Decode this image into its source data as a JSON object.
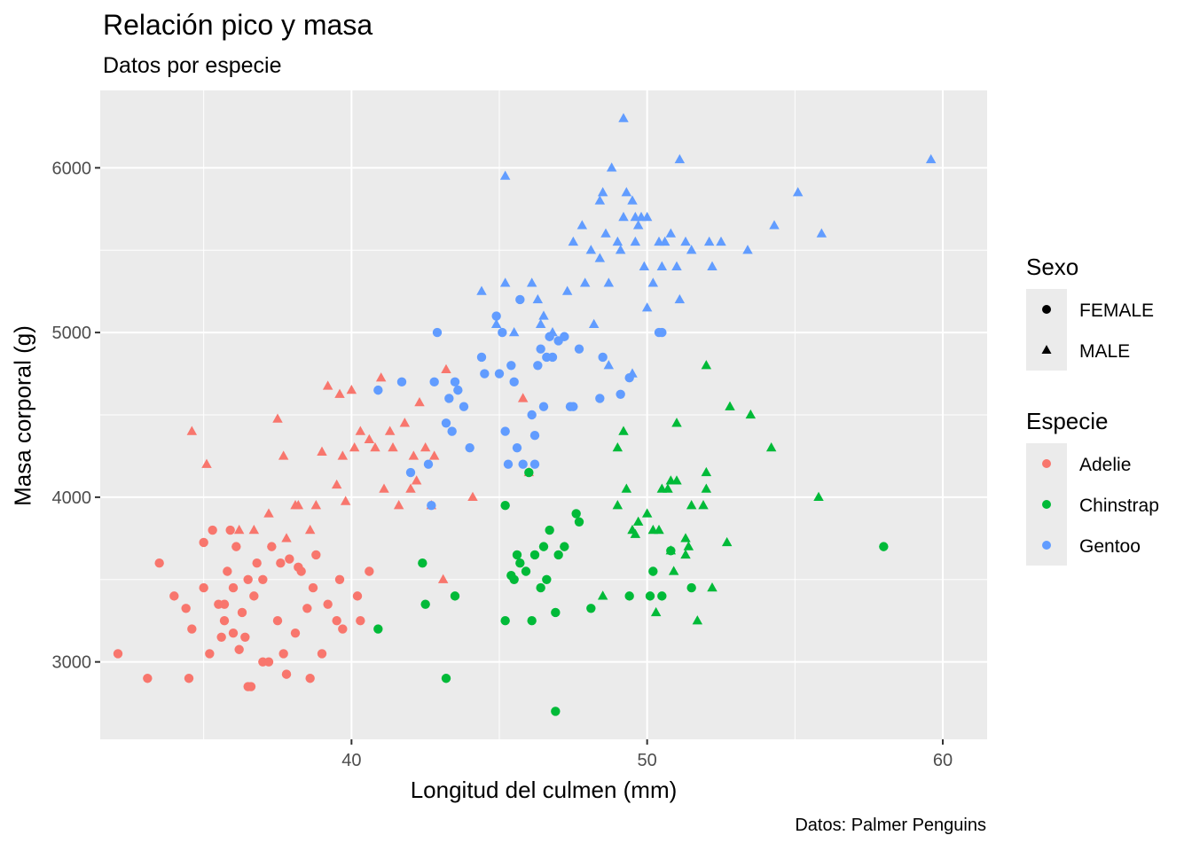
{
  "chart_data": {
    "type": "scatter",
    "title": "Relación pico y masa",
    "subtitle": "Datos por especie",
    "caption": "Datos: Palmer Penguins",
    "xlabel": "Longitud del culmen (mm)",
    "ylabel": "Masa corporal (g)",
    "xlim": [
      31.5,
      61.5
    ],
    "ylim": [
      2530,
      6470
    ],
    "x_ticks": [
      40,
      50,
      60
    ],
    "y_ticks": [
      3000,
      4000,
      5000,
      6000
    ],
    "grid": true,
    "legend_position": "right",
    "legends": [
      {
        "title": "Sexo",
        "kind": "shape",
        "entries": [
          {
            "label": "FEMALE",
            "shape": "circle"
          },
          {
            "label": "MALE",
            "shape": "triangle"
          }
        ]
      },
      {
        "title": "Especie",
        "kind": "color",
        "entries": [
          {
            "label": "Adelie",
            "color": "#F8766D"
          },
          {
            "label": "Chinstrap",
            "color": "#00BA38"
          },
          {
            "label": "Gentoo",
            "color": "#619CFF"
          }
        ]
      }
    ],
    "series": [
      {
        "species": "Adelie",
        "sex": "FEMALE",
        "color": "#F8766D",
        "shape": "circle",
        "points": [
          [
            32.1,
            3050
          ],
          [
            33.1,
            2900
          ],
          [
            33.5,
            3600
          ],
          [
            34.0,
            3400
          ],
          [
            34.4,
            3325
          ],
          [
            34.5,
            2900
          ],
          [
            34.6,
            3200
          ],
          [
            35.0,
            3450
          ],
          [
            35.0,
            3725
          ],
          [
            35.2,
            3050
          ],
          [
            35.3,
            3800
          ],
          [
            35.5,
            3350
          ],
          [
            35.6,
            3150
          ],
          [
            35.7,
            3350
          ],
          [
            35.8,
            3550
          ],
          [
            35.9,
            3800
          ],
          [
            36.0,
            3175
          ],
          [
            36.0,
            3450
          ],
          [
            36.1,
            3700
          ],
          [
            36.2,
            3075
          ],
          [
            36.3,
            3300
          ],
          [
            36.4,
            3150
          ],
          [
            36.5,
            2850
          ],
          [
            36.6,
            2850
          ],
          [
            36.7,
            3400
          ],
          [
            36.8,
            3600
          ],
          [
            37.0,
            3500
          ],
          [
            37.0,
            3000
          ],
          [
            37.2,
            3000
          ],
          [
            37.3,
            3700
          ],
          [
            37.5,
            3250
          ],
          [
            37.6,
            3600
          ],
          [
            37.7,
            3050
          ],
          [
            37.8,
            2925
          ],
          [
            37.9,
            3625
          ],
          [
            38.1,
            3175
          ],
          [
            38.2,
            3575
          ],
          [
            38.3,
            3550
          ],
          [
            38.5,
            3325
          ],
          [
            38.6,
            2900
          ],
          [
            38.7,
            3450
          ],
          [
            38.8,
            3650
          ],
          [
            39.0,
            3050
          ],
          [
            39.2,
            3350
          ],
          [
            39.5,
            3250
          ],
          [
            39.6,
            3500
          ],
          [
            39.7,
            3200
          ],
          [
            40.2,
            3400
          ],
          [
            40.3,
            3250
          ],
          [
            40.6,
            3550
          ],
          [
            36.5,
            3500
          ],
          [
            35.7,
            3250
          ]
        ]
      },
      {
        "species": "Adelie",
        "sex": "MALE",
        "color": "#F8766D",
        "shape": "triangle",
        "points": [
          [
            34.6,
            4400
          ],
          [
            35.1,
            4200
          ],
          [
            36.2,
            3800
          ],
          [
            36.7,
            3800
          ],
          [
            37.2,
            3900
          ],
          [
            37.5,
            4475
          ],
          [
            37.7,
            4250
          ],
          [
            37.8,
            3750
          ],
          [
            38.1,
            3950
          ],
          [
            38.2,
            3950
          ],
          [
            38.6,
            3800
          ],
          [
            38.8,
            3950
          ],
          [
            39.0,
            4275
          ],
          [
            39.2,
            4675
          ],
          [
            39.5,
            4075
          ],
          [
            39.6,
            4625
          ],
          [
            39.7,
            4250
          ],
          [
            39.8,
            3975
          ],
          [
            40.0,
            4650
          ],
          [
            40.1,
            4300
          ],
          [
            40.3,
            4400
          ],
          [
            40.6,
            4350
          ],
          [
            40.8,
            4300
          ],
          [
            41.1,
            4050
          ],
          [
            41.0,
            4725
          ],
          [
            41.3,
            4400
          ],
          [
            41.4,
            4300
          ],
          [
            41.6,
            3950
          ],
          [
            41.8,
            4450
          ],
          [
            42.0,
            4050
          ],
          [
            42.1,
            4250
          ],
          [
            42.2,
            4100
          ],
          [
            42.3,
            4575
          ],
          [
            42.5,
            4300
          ],
          [
            42.7,
            3950
          ],
          [
            42.8,
            4250
          ],
          [
            43.1,
            3500
          ],
          [
            43.2,
            4775
          ],
          [
            44.1,
            4000
          ],
          [
            45.8,
            4600
          ],
          [
            46.0,
            4150
          ]
        ]
      },
      {
        "species": "Chinstrap",
        "sex": "FEMALE",
        "color": "#00BA38",
        "shape": "circle",
        "points": [
          [
            40.9,
            3200
          ],
          [
            42.4,
            3600
          ],
          [
            42.5,
            3350
          ],
          [
            43.2,
            2900
          ],
          [
            43.5,
            3400
          ],
          [
            45.2,
            3250
          ],
          [
            45.2,
            3950
          ],
          [
            45.4,
            3525
          ],
          [
            45.5,
            3500
          ],
          [
            45.6,
            3650
          ],
          [
            45.7,
            3600
          ],
          [
            45.9,
            3550
          ],
          [
            46.1,
            3250
          ],
          [
            46.2,
            3650
          ],
          [
            46.4,
            3450
          ],
          [
            46.5,
            3700
          ],
          [
            46.6,
            3500
          ],
          [
            46.7,
            3800
          ],
          [
            46.9,
            2700
          ],
          [
            47.0,
            3650
          ],
          [
            46.9,
            3300
          ],
          [
            47.2,
            3700
          ],
          [
            47.6,
            3900
          ],
          [
            47.7,
            3850
          ],
          [
            48.1,
            3325
          ],
          [
            49.4,
            3400
          ],
          [
            50.1,
            3400
          ],
          [
            50.2,
            3550
          ],
          [
            50.5,
            3400
          ],
          [
            50.8,
            3675
          ],
          [
            51.5,
            3450
          ],
          [
            58.0,
            3700
          ],
          [
            46.0,
            4150
          ]
        ]
      },
      {
        "species": "Chinstrap",
        "sex": "MALE",
        "color": "#00BA38",
        "shape": "triangle",
        "points": [
          [
            48.5,
            3400
          ],
          [
            49.0,
            3950
          ],
          [
            49.0,
            4300
          ],
          [
            49.2,
            4400
          ],
          [
            49.3,
            4050
          ],
          [
            49.5,
            3800
          ],
          [
            49.6,
            3775
          ],
          [
            49.7,
            3850
          ],
          [
            50.0,
            3900
          ],
          [
            50.2,
            3800
          ],
          [
            50.3,
            3300
          ],
          [
            50.4,
            3800
          ],
          [
            50.5,
            4050
          ],
          [
            50.7,
            4050
          ],
          [
            50.8,
            4100
          ],
          [
            50.8,
            3675
          ],
          [
            50.9,
            3550
          ],
          [
            51.0,
            4100
          ],
          [
            51.3,
            3650
          ],
          [
            51.3,
            3750
          ],
          [
            51.4,
            3700
          ],
          [
            51.5,
            3950
          ],
          [
            51.7,
            3250
          ],
          [
            51.9,
            3950
          ],
          [
            52.0,
            4050
          ],
          [
            52.0,
            4150
          ],
          [
            52.0,
            4800
          ],
          [
            52.2,
            3450
          ],
          [
            52.7,
            3725
          ],
          [
            52.8,
            4550
          ],
          [
            53.5,
            4500
          ],
          [
            54.2,
            4300
          ],
          [
            55.8,
            4000
          ],
          [
            51.0,
            4450
          ]
        ]
      },
      {
        "species": "Gentoo",
        "sex": "FEMALE",
        "color": "#619CFF",
        "shape": "circle",
        "points": [
          [
            40.9,
            4650
          ],
          [
            41.7,
            4700
          ],
          [
            42.0,
            4150
          ],
          [
            42.6,
            4200
          ],
          [
            42.7,
            3950
          ],
          [
            42.8,
            4700
          ],
          [
            42.9,
            5000
          ],
          [
            43.2,
            4450
          ],
          [
            43.3,
            4600
          ],
          [
            43.4,
            4400
          ],
          [
            43.5,
            4700
          ],
          [
            43.6,
            4650
          ],
          [
            43.8,
            4550
          ],
          [
            44.0,
            4300
          ],
          [
            44.4,
            4850
          ],
          [
            44.5,
            4750
          ],
          [
            44.9,
            5100
          ],
          [
            45.0,
            4750
          ],
          [
            45.1,
            5000
          ],
          [
            45.2,
            4400
          ],
          [
            45.3,
            4200
          ],
          [
            45.4,
            4800
          ],
          [
            45.5,
            4700
          ],
          [
            45.6,
            4300
          ],
          [
            45.7,
            5200
          ],
          [
            45.8,
            4200
          ],
          [
            46.1,
            4500
          ],
          [
            46.2,
            4375
          ],
          [
            46.3,
            4800
          ],
          [
            46.4,
            4900
          ],
          [
            46.5,
            4550
          ],
          [
            46.6,
            4850
          ],
          [
            46.7,
            4975
          ],
          [
            46.8,
            4850
          ],
          [
            47.0,
            4950
          ],
          [
            47.2,
            4975
          ],
          [
            47.4,
            4550
          ],
          [
            47.5,
            4550
          ],
          [
            47.7,
            4900
          ],
          [
            48.4,
            4600
          ],
          [
            48.5,
            4850
          ],
          [
            49.1,
            4625
          ],
          [
            49.4,
            4725
          ],
          [
            50.4,
            5000
          ],
          [
            50.5,
            5000
          ],
          [
            46.2,
            4200
          ]
        ]
      },
      {
        "species": "Gentoo",
        "sex": "MALE",
        "color": "#619CFF",
        "shape": "triangle",
        "points": [
          [
            44.4,
            5250
          ],
          [
            44.9,
            5050
          ],
          [
            45.2,
            5950
          ],
          [
            45.2,
            5300
          ],
          [
            45.5,
            5000
          ],
          [
            46.1,
            5300
          ],
          [
            46.3,
            5200
          ],
          [
            46.4,
            5050
          ],
          [
            46.5,
            5100
          ],
          [
            46.8,
            5000
          ],
          [
            47.3,
            5250
          ],
          [
            47.5,
            5550
          ],
          [
            47.8,
            5650
          ],
          [
            47.9,
            5300
          ],
          [
            48.1,
            5500
          ],
          [
            48.2,
            5050
          ],
          [
            48.4,
            5800
          ],
          [
            48.5,
            5850
          ],
          [
            48.6,
            5600
          ],
          [
            48.7,
            5300
          ],
          [
            48.8,
            6000
          ],
          [
            49.0,
            5550
          ],
          [
            49.1,
            5500
          ],
          [
            49.2,
            5700
          ],
          [
            49.3,
            5850
          ],
          [
            49.5,
            5800
          ],
          [
            49.6,
            5700
          ],
          [
            49.7,
            5650
          ],
          [
            49.8,
            5700
          ],
          [
            49.9,
            5400
          ],
          [
            50.0,
            5700
          ],
          [
            50.2,
            5300
          ],
          [
            50.4,
            5550
          ],
          [
            50.5,
            5400
          ],
          [
            50.6,
            5550
          ],
          [
            50.8,
            5600
          ],
          [
            51.1,
            6050
          ],
          [
            51.3,
            5550
          ],
          [
            51.5,
            5500
          ],
          [
            52.1,
            5550
          ],
          [
            52.5,
            5550
          ],
          [
            53.4,
            5500
          ],
          [
            54.3,
            5650
          ],
          [
            55.1,
            5850
          ],
          [
            55.9,
            5600
          ],
          [
            59.6,
            6050
          ],
          [
            49.2,
            6300
          ],
          [
            50.0,
            5150
          ],
          [
            48.4,
            5450
          ],
          [
            49.5,
            4750
          ],
          [
            51.1,
            5200
          ],
          [
            52.2,
            5400
          ],
          [
            48.7,
            4800
          ],
          [
            49.6,
            5550
          ],
          [
            51.0,
            5400
          ]
        ]
      }
    ]
  }
}
